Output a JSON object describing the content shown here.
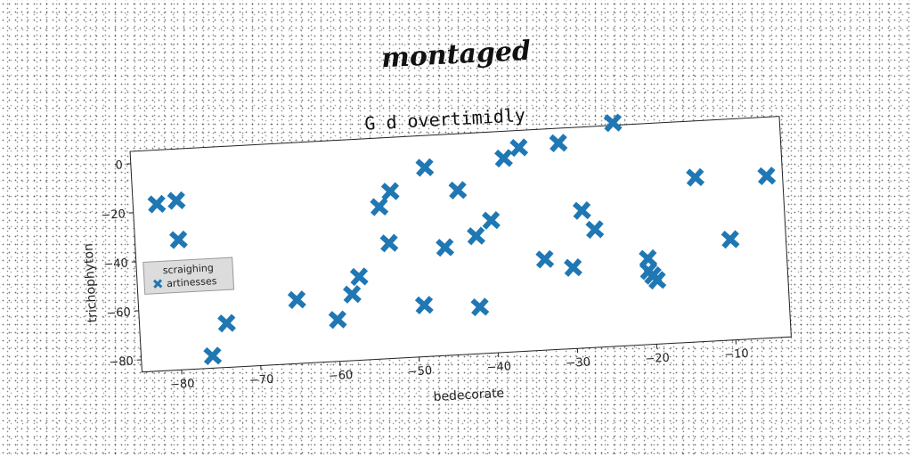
{
  "figure": {
    "title": "montaged"
  },
  "chart_data": {
    "type": "scatter",
    "title": "G d overtimidly",
    "xlabel": "bedecorate",
    "ylabel": "trichophyton",
    "xlim": [
      -85,
      -3
    ],
    "ylim": [
      -85,
      5
    ],
    "xticks": [
      -80,
      -70,
      -60,
      -50,
      -40,
      -30,
      -20,
      -10
    ],
    "yticks": [
      0,
      -20,
      -40,
      -60,
      -80
    ],
    "legend": {
      "title": "scraighing",
      "placement": "center-left"
    },
    "series": [
      {
        "name": "artinesses",
        "color": "#1f77b4",
        "marker": "x",
        "points": [
          [
            -82,
            -17
          ],
          [
            -79.5,
            -16
          ],
          [
            -79.5,
            -32
          ],
          [
            -79,
            -48
          ],
          [
            -76,
            -80
          ],
          [
            -74,
            -67
          ],
          [
            -65,
            -59
          ],
          [
            -60,
            -68
          ],
          [
            -58,
            -58
          ],
          [
            -57,
            -51
          ],
          [
            -54,
            -23
          ],
          [
            -53,
            -38
          ],
          [
            -52.5,
            -17
          ],
          [
            -49,
            -64
          ],
          [
            -48,
            -8
          ],
          [
            -46,
            -41
          ],
          [
            -44,
            -18
          ],
          [
            -42,
            -66
          ],
          [
            -42,
            -37
          ],
          [
            -40,
            -31
          ],
          [
            -38,
            -6
          ],
          [
            -36,
            -2
          ],
          [
            -33.5,
            -48
          ],
          [
            -31,
            -1
          ],
          [
            -30,
            -52
          ],
          [
            -28.5,
            -29
          ],
          [
            -27,
            -37
          ],
          [
            -24,
            6
          ],
          [
            -20.5,
            -50
          ],
          [
            -20.5,
            -55
          ],
          [
            -20,
            -57
          ],
          [
            -19.5,
            -59
          ],
          [
            -14,
            -18
          ],
          [
            -10,
            -44
          ],
          [
            -5,
            -19
          ]
        ]
      }
    ]
  }
}
